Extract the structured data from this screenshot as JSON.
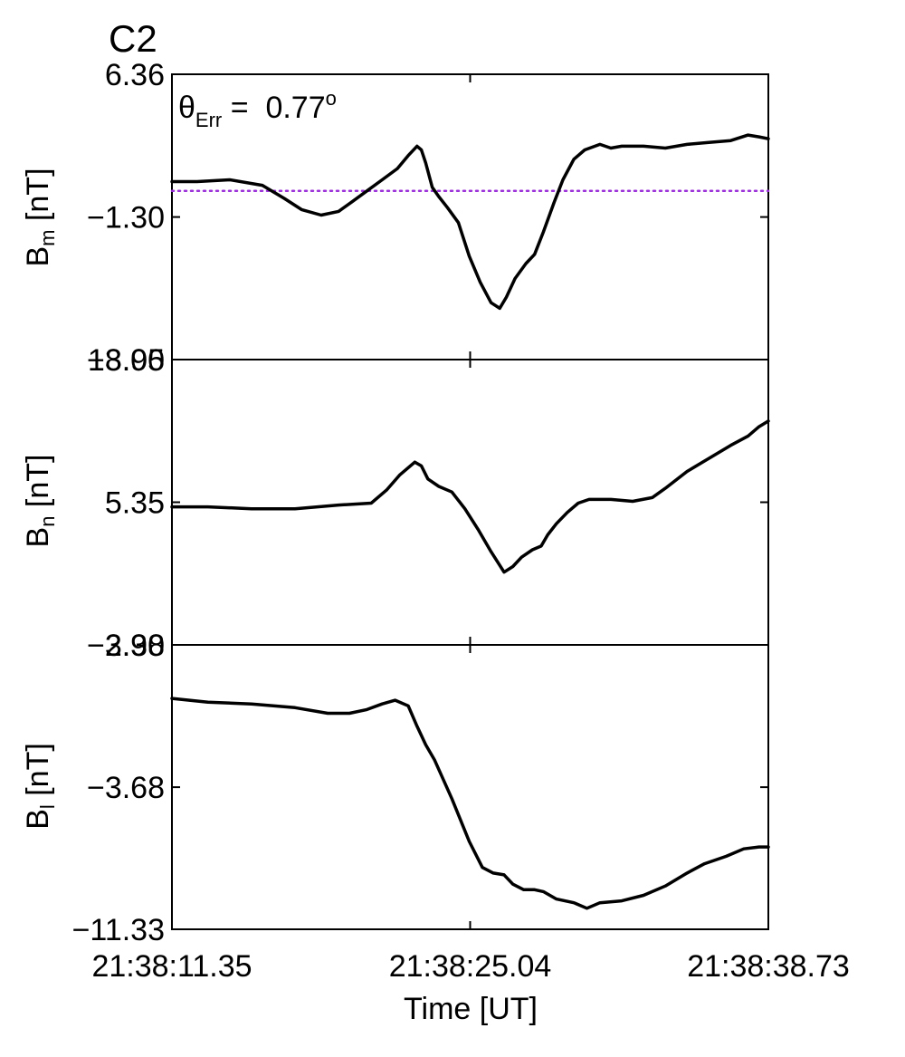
{
  "figure": {
    "panel_label": "C2",
    "panel_label_color": "#e8000b"
  },
  "chart_data": {
    "type": "line",
    "title": "C2",
    "xlabel": "Time [UT]",
    "x_unit": "seconds after 21:38:00 UT",
    "xlim": [
      11.35,
      38.73
    ],
    "xticks": [
      11.35,
      25.04,
      38.73
    ],
    "xtick_labels": [
      "21:38:11.35",
      "21:38:25.04",
      "21:38:38.73"
    ],
    "line_color": "#000000",
    "panels": [
      {
        "id": "bm",
        "ylabel_main": "B",
        "ylabel_sub": "m",
        "ylabel_unit": " [nT]",
        "ylim": [
          -8.95,
          6.36
        ],
        "yticks": [
          6.36,
          -1.3,
          -8.95
        ],
        "ytick_labels": [
          "6.36",
          "−1.30",
          "−8.95"
        ],
        "annotation": {
          "theta": "θ",
          "sub": "Err",
          "equals": " =  ",
          "value": "0.77",
          "sup": "o"
        },
        "reference_line": {
          "y": 0.1,
          "color": "#9b30d9",
          "style": "dotted"
        },
        "series": [
          {
            "x": [
              11.35,
              12.5,
              14.0,
              15.5,
              16.5,
              17.3,
              18.2,
              19.0,
              19.6,
              20.3,
              21.0,
              21.7,
              22.2,
              22.6,
              22.8,
              23.0,
              23.3,
              23.6,
              24.0,
              24.5,
              25.0,
              25.5,
              26.0,
              26.4,
              26.7,
              27.1,
              27.6,
              28.0,
              28.4,
              28.9,
              29.3,
              29.8,
              30.3,
              31.0,
              31.5,
              32.0,
              33.0,
              34.0,
              35.0,
              36.0,
              37.0,
              37.8,
              38.3,
              38.73
            ],
            "y": [
              0.6,
              0.6,
              0.7,
              0.4,
              -0.3,
              -0.9,
              -1.2,
              -1.0,
              -0.5,
              0.1,
              0.7,
              1.3,
              2.0,
              2.5,
              2.3,
              1.6,
              0.3,
              -0.2,
              -0.8,
              -1.6,
              -3.4,
              -4.8,
              -5.9,
              -6.2,
              -5.6,
              -4.6,
              -3.8,
              -3.3,
              -2.1,
              -0.5,
              0.7,
              1.8,
              2.3,
              2.6,
              2.4,
              2.5,
              2.5,
              2.4,
              2.6,
              2.7,
              2.8,
              3.1,
              3.0,
              2.9
            ]
          }
        ]
      },
      {
        "id": "bn",
        "ylabel_main": "B",
        "ylabel_sub": "n",
        "ylabel_unit": " [nT]",
        "ylim": [
          -2.3,
          13.0
        ],
        "yticks": [
          13.0,
          5.35,
          -2.3
        ],
        "ytick_labels": [
          "13.00",
          "5.35",
          "−2.30"
        ],
        "series": [
          {
            "x": [
              11.35,
              13.0,
              15.0,
              17.0,
              19.0,
              20.5,
              21.2,
              21.8,
              22.5,
              22.8,
              23.1,
              23.6,
              24.2,
              24.8,
              25.4,
              26.0,
              26.6,
              27.0,
              27.4,
              27.9,
              28.3,
              28.6,
              29.0,
              29.5,
              30.0,
              30.5,
              31.5,
              32.5,
              33.4,
              34.0,
              35.0,
              36.0,
              37.0,
              37.8,
              38.3,
              38.73
            ],
            "y": [
              5.1,
              5.1,
              5.0,
              5.0,
              5.2,
              5.3,
              6.0,
              6.8,
              7.5,
              7.3,
              6.6,
              6.2,
              5.9,
              5.0,
              3.9,
              2.7,
              1.6,
              1.9,
              2.4,
              2.8,
              3.0,
              3.6,
              4.2,
              4.8,
              5.3,
              5.5,
              5.5,
              5.4,
              5.6,
              6.1,
              7.0,
              7.7,
              8.4,
              8.9,
              9.4,
              9.7
            ]
          }
        ]
      },
      {
        "id": "bl",
        "ylabel_main": "B",
        "ylabel_sub": "l",
        "ylabel_unit": " [nT]",
        "ylim": [
          -11.33,
          3.98
        ],
        "yticks": [
          3.98,
          -3.68,
          -11.33
        ],
        "ytick_labels": [
          "3.98",
          "−3.68",
          "−11.33"
        ],
        "series": [
          {
            "x": [
              11.35,
              13.0,
              15.0,
              17.0,
              18.5,
              19.5,
              20.3,
              21.0,
              21.6,
              22.2,
              22.6,
              23.0,
              23.4,
              24.2,
              25.0,
              25.6,
              26.1,
              26.6,
              27.0,
              27.5,
              28.0,
              28.4,
              29.0,
              29.8,
              30.4,
              31.0,
              32.0,
              33.0,
              34.0,
              35.0,
              35.8,
              36.8,
              37.6,
              38.3,
              38.73
            ],
            "y": [
              1.1,
              0.9,
              0.8,
              0.6,
              0.3,
              0.3,
              0.5,
              0.8,
              1.0,
              0.7,
              -0.4,
              -1.4,
              -2.2,
              -4.3,
              -6.6,
              -8.0,
              -8.3,
              -8.4,
              -8.9,
              -9.2,
              -9.2,
              -9.3,
              -9.7,
              -9.9,
              -10.2,
              -9.9,
              -9.8,
              -9.5,
              -9.0,
              -8.3,
              -7.8,
              -7.4,
              -7.0,
              -6.9,
              -6.9
            ]
          }
        ]
      }
    ]
  }
}
